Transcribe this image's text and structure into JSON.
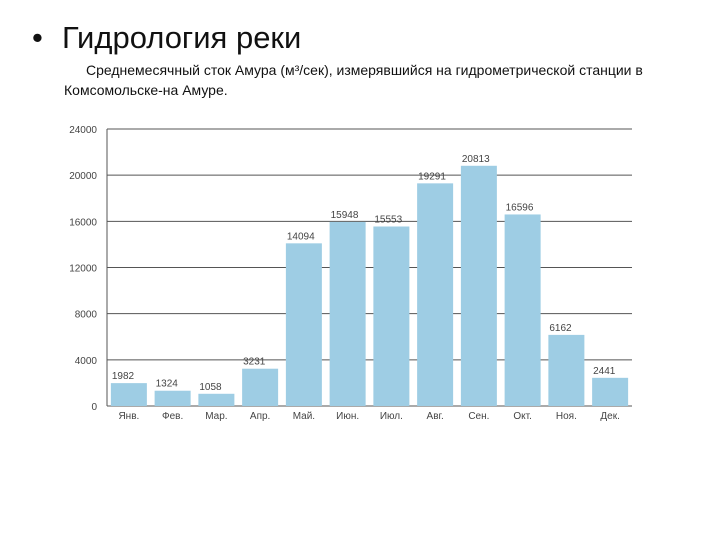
{
  "slide": {
    "bullet": "•",
    "title": "Гидрология реки",
    "subtitle": "Среднемесячный сток Амура (м³/сек), измерявшийся на гидрометрической станции в Комсомольске-на Амуре."
  },
  "chart_data": {
    "type": "bar",
    "categories": [
      "Янв.",
      "Фев.",
      "Мар.",
      "Апр.",
      "Май.",
      "Июн.",
      "Июл.",
      "Авг.",
      "Сен.",
      "Окт.",
      "Ноя.",
      "Дек."
    ],
    "values": [
      1982,
      1324,
      1058,
      3231,
      14094,
      15948,
      15553,
      19291,
      20813,
      16596,
      6162,
      2441
    ],
    "value_labels": [
      "1982",
      "1324",
      "1058",
      "3231",
      "14094",
      "15948",
      "15553",
      "19291",
      "20813",
      "16596",
      "6162",
      "2441"
    ],
    "yticks": [
      0,
      4000,
      8000,
      12000,
      16000,
      20000,
      24000
    ],
    "ylim": [
      0,
      24000
    ],
    "grid": true,
    "title": "",
    "xlabel": "",
    "ylabel": "",
    "colors": {
      "bar": "#9ecde4",
      "grid": "#555555",
      "text": "#444444"
    }
  }
}
